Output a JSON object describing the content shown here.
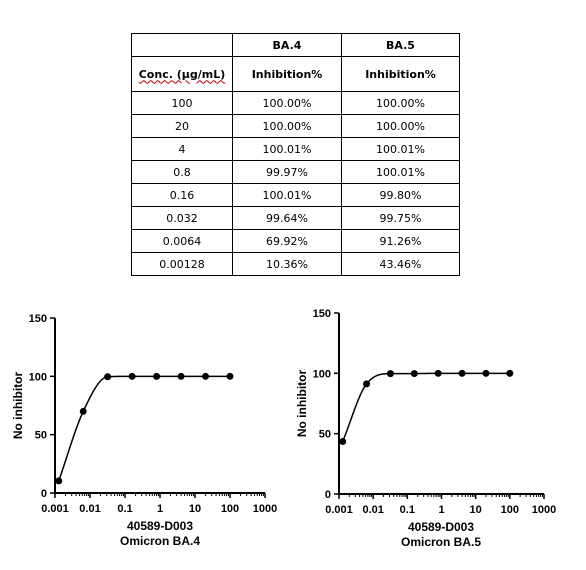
{
  "table": {
    "headers": [
      "",
      "BA.4",
      "BA.5"
    ],
    "subheaders": [
      "Conc. (µg/mL)",
      "Inhibition%",
      "Inhibition%"
    ],
    "rows": [
      [
        "100",
        "100.00%",
        "100.00%"
      ],
      [
        "20",
        "100.00%",
        "100.00%"
      ],
      [
        "4",
        "100.01%",
        "100.01%"
      ],
      [
        "0.8",
        "99.97%",
        "100.01%"
      ],
      [
        "0.16",
        "100.01%",
        "99.80%"
      ],
      [
        "0.032",
        "99.64%",
        "99.75%"
      ],
      [
        "0.0064",
        "69.92%",
        "91.26%"
      ],
      [
        "0.00128",
        "10.36%",
        "43.46%"
      ]
    ]
  },
  "chart_data": [
    {
      "type": "scatter",
      "fit": "sigmoidal curve",
      "xscale": "log",
      "x": [
        0.00128,
        0.0064,
        0.032,
        0.16,
        0.8,
        4,
        20,
        100
      ],
      "y": [
        10.36,
        69.92,
        99.64,
        100.01,
        99.97,
        100.01,
        100.0,
        100.0
      ],
      "ylabel": "No inhibitor",
      "xlabel_lines": [
        "40589-D003",
        "Omicron BA.4"
      ],
      "xlim": [
        0.001,
        1000
      ],
      "ylim": [
        0,
        150
      ],
      "xticks": [
        "0.001",
        "0.01",
        "0.1",
        "1",
        "10",
        "100",
        "1000"
      ],
      "yticks": [
        "0",
        "50",
        "100",
        "150"
      ],
      "grid": false,
      "color": "#000000"
    },
    {
      "type": "scatter",
      "fit": "sigmoidal curve",
      "xscale": "log",
      "x": [
        0.00128,
        0.0064,
        0.032,
        0.16,
        0.8,
        4,
        20,
        100
      ],
      "y": [
        43.46,
        91.26,
        99.75,
        99.8,
        100.01,
        100.01,
        100.0,
        100.0
      ],
      "ylabel": "No inhibitor",
      "xlabel_lines": [
        "40589-D003",
        "Omicron BA.5"
      ],
      "xlim": [
        0.001,
        1000
      ],
      "ylim": [
        0,
        150
      ],
      "xticks": [
        "0.001",
        "0.01",
        "0.1",
        "1",
        "10",
        "100",
        "1000"
      ],
      "yticks": [
        "0",
        "50",
        "100",
        "150"
      ],
      "grid": false,
      "color": "#000000"
    }
  ]
}
